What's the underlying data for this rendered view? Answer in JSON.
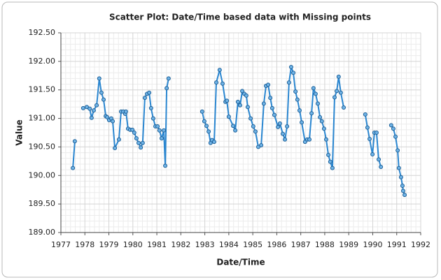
{
  "chart_data": {
    "type": "line",
    "title": "Scatter Plot: Date/Time based data with Missing points",
    "x_label": "Date/Time",
    "y_label": "Value",
    "x": [
      1977.5,
      1977.58,
      null,
      1977.93,
      1978.08,
      1978.2,
      1978.28,
      1978.37,
      1978.49,
      1978.6,
      1978.69,
      1978.78,
      1978.87,
      1978.93,
      1979.01,
      1979.1,
      1979.16,
      1979.25,
      1979.42,
      1979.51,
      1979.6,
      1979.68,
      1979.71,
      1979.8,
      1979.89,
      1979.98,
      1980.06,
      1980.15,
      1980.24,
      1980.33,
      1980.41,
      1980.5,
      1980.59,
      1980.68,
      1980.76,
      1980.85,
      1980.94,
      1981.03,
      1981.11,
      1981.2,
      1981.29,
      1981.35,
      1981.41,
      1981.49,
      null,
      1982.89,
      1982.98,
      1983.07,
      1983.16,
      1983.24,
      1983.3,
      1983.39,
      1983.48,
      1983.62,
      1983.74,
      1983.86,
      1983.92,
      1984.0,
      1984.18,
      1984.27,
      1984.38,
      1984.47,
      1984.56,
      1984.65,
      1984.73,
      1984.79,
      1984.91,
      1985.02,
      1985.11,
      1985.23,
      1985.35,
      1985.46,
      1985.55,
      1985.64,
      1985.73,
      1985.81,
      1985.9,
      1986.05,
      1986.13,
      1986.25,
      1986.34,
      1986.43,
      1986.51,
      1986.6,
      1986.69,
      1986.78,
      1986.86,
      1986.95,
      1987.04,
      1987.18,
      1987.27,
      1987.36,
      1987.45,
      1987.53,
      1987.62,
      1987.71,
      1987.8,
      1987.88,
      1987.97,
      1988.06,
      1988.15,
      1988.23,
      1988.32,
      1988.41,
      1988.5,
      1988.58,
      1988.67,
      1988.79,
      null,
      1989.69,
      1989.78,
      1989.87,
      1989.99,
      1990.07,
      1990.16,
      1990.25,
      1990.34,
      null,
      1990.77,
      1990.86,
      1990.95,
      1991.04,
      1991.09,
      1991.18,
      1991.24,
      1991.27,
      1991.33
    ],
    "series": [
      {
        "name": "Value",
        "color": "#2a86d0",
        "values": [
          190.13,
          190.6,
          null,
          191.18,
          191.2,
          191.17,
          191.01,
          191.14,
          191.23,
          191.7,
          191.45,
          191.33,
          191.04,
          191.02,
          190.97,
          191.0,
          190.95,
          190.48,
          190.63,
          191.12,
          191.12,
          191.08,
          191.12,
          190.82,
          190.8,
          190.8,
          190.75,
          190.65,
          190.57,
          190.49,
          190.57,
          191.36,
          191.43,
          191.45,
          191.18,
          191.0,
          190.86,
          190.86,
          190.79,
          190.65,
          190.79,
          190.17,
          191.53,
          191.7,
          null,
          191.12,
          190.95,
          190.87,
          190.77,
          190.57,
          190.62,
          190.59,
          191.63,
          191.85,
          191.61,
          191.29,
          191.31,
          191.03,
          190.87,
          190.79,
          191.29,
          191.23,
          191.48,
          191.43,
          191.4,
          191.2,
          191.0,
          190.86,
          190.77,
          190.5,
          190.53,
          191.26,
          191.57,
          191.59,
          191.36,
          191.18,
          191.06,
          190.85,
          190.91,
          190.73,
          190.63,
          190.86,
          191.63,
          191.9,
          191.8,
          191.47,
          191.33,
          191.14,
          190.93,
          190.59,
          190.63,
          190.63,
          191.09,
          191.53,
          191.43,
          191.26,
          191.02,
          190.95,
          190.82,
          190.63,
          190.36,
          190.24,
          190.13,
          191.37,
          191.48,
          191.73,
          191.45,
          191.19,
          null,
          191.07,
          190.84,
          190.64,
          190.37,
          190.75,
          190.75,
          190.28,
          190.15,
          null,
          190.88,
          190.82,
          190.68,
          190.44,
          190.13,
          189.97,
          189.82,
          189.73,
          189.66
        ]
      }
    ],
    "xlim": [
      1977,
      1992
    ],
    "xticks": [
      1977,
      1978,
      1979,
      1980,
      1981,
      1982,
      1983,
      1984,
      1985,
      1986,
      1987,
      1988,
      1989,
      1990,
      1991,
      1992
    ],
    "ylim": [
      189,
      192.5
    ],
    "yticks": [
      {
        "value": 189,
        "label": "189.00"
      },
      {
        "value": 189.5,
        "label": "189.50"
      },
      {
        "value": 190,
        "label": "190.00"
      },
      {
        "value": 190.5,
        "label": "190.50"
      },
      {
        "value": 191,
        "label": "191.00"
      },
      {
        "value": 191.5,
        "label": "191.50"
      },
      {
        "value": 192,
        "label": "192.00"
      },
      {
        "value": 192.5,
        "label": "192.50"
      }
    ],
    "grid": true
  }
}
